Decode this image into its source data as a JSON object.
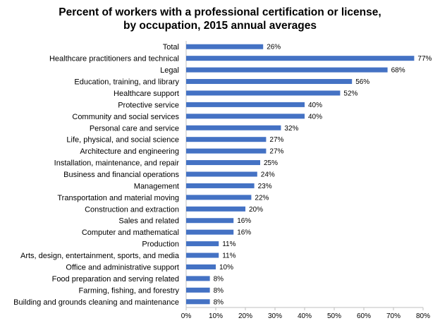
{
  "chart_data": {
    "type": "bar",
    "orientation": "horizontal",
    "title_line1": "Percent of workers with a professional certification or license,",
    "title_line2": "by occupation, 2015 annual averages",
    "categories": [
      "Total",
      "Healthcare practitioners and technical",
      "Legal",
      "Education, training, and library",
      "Healthcare support",
      "Protective service",
      "Community and social services",
      "Personal care and service",
      "Life, physical, and social science",
      "Architecture and engineering",
      "Installation, maintenance, and repair",
      "Business and financial operations",
      "Management",
      "Transportation and material moving",
      "Construction and extraction",
      "Sales and related",
      "Computer and mathematical",
      "Production",
      "Arts, design, entertainment, sports, and media",
      "Office and administrative support",
      "Food preparation and serving related",
      "Farming, fishing, and forestry",
      "Building and grounds cleaning and maintenance"
    ],
    "values": [
      26,
      77,
      68,
      56,
      52,
      40,
      40,
      32,
      27,
      27,
      25,
      24,
      23,
      22,
      20,
      16,
      16,
      11,
      11,
      10,
      8,
      8,
      8
    ],
    "value_suffix": "%",
    "xlim": [
      0,
      80
    ],
    "xticks": [
      "0%",
      "10%",
      "20%",
      "30%",
      "40%",
      "50%",
      "60%",
      "70%",
      "80%"
    ],
    "xlabel": "",
    "ylabel": "",
    "grid": false,
    "bar_color": "#4472C4"
  }
}
